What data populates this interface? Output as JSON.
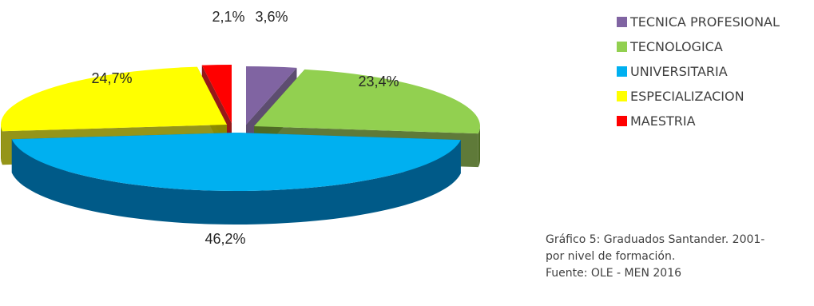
{
  "chart_data": {
    "type": "pie",
    "categories": [
      "TECNICA PROFESIONAL",
      "TECNOLOGICA",
      "UNIVERSITARIA",
      "ESPECIALIZACION",
      "MAESTRIA"
    ],
    "values": [
      3.6,
      23.4,
      46.2,
      24.7,
      2.1
    ],
    "labels": [
      "3,6%",
      "23,4%",
      "46,2%",
      "24,7%",
      "2,1%"
    ],
    "colors": [
      "#8064a2",
      "#92d050",
      "#00b0f0",
      "#ffff00",
      "#ff0000"
    ],
    "side_colors": [
      "#4b3a61",
      "#4e6b24",
      "#005a88",
      "#8a8a00",
      "#8a0000"
    ],
    "style": "3d-exploded",
    "legend_position": "top-right"
  },
  "legend": {
    "items": [
      {
        "label": "TECNICA PROFESIONAL",
        "color": "#8064a2"
      },
      {
        "label": "TECNOLOGICA",
        "color": "#92d050"
      },
      {
        "label": "UNIVERSITARIA",
        "color": "#00b0f0"
      },
      {
        "label": "ESPECIALIZACION",
        "color": "#ffff00"
      },
      {
        "label": "MAESTRIA",
        "color": "#ff0000"
      }
    ]
  },
  "caption": {
    "line1": "Gráfico 5: Graduados Santander. 2001-",
    "line2": "por nivel de formación.",
    "line3": "Fuente: OLE - MEN 2016"
  }
}
